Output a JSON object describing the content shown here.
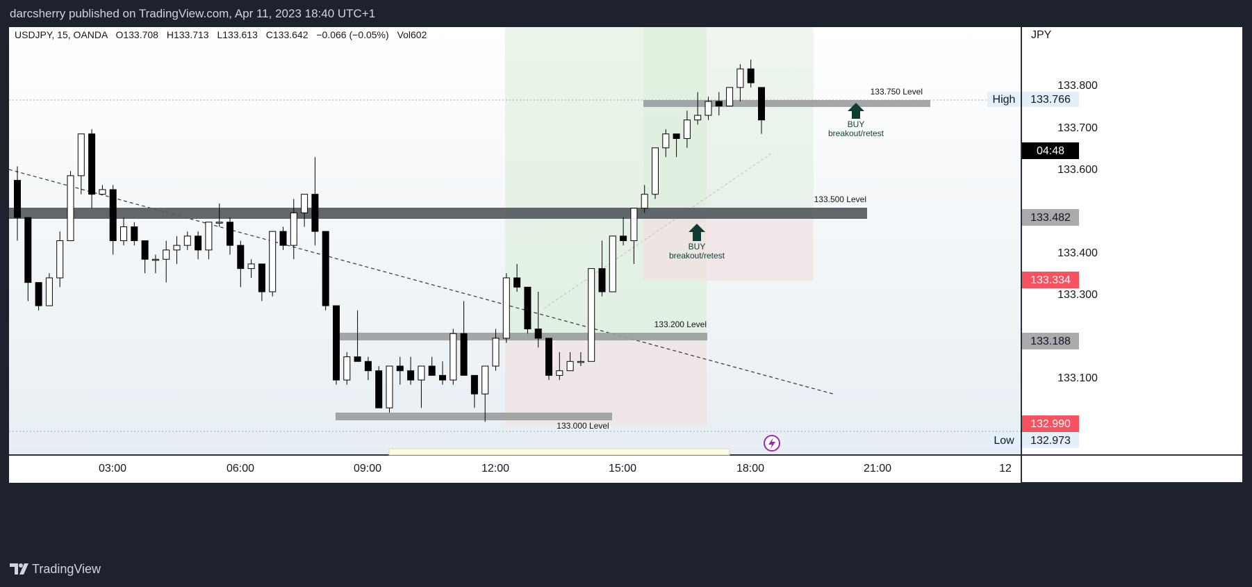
{
  "header": {
    "publisher": "darcsherry published on TradingView.com, Apr 11, 2023 18:40 UTC+1"
  },
  "legend": {
    "symbol": "USDJPY, 15, OANDA",
    "open": "O133.708",
    "high": "H133.713",
    "low": "L133.613",
    "close": "C133.642",
    "change": "−0.066 (−0.05%)",
    "volume": "Vol602"
  },
  "currency": "JPY",
  "price_axis": {
    "ticks": [
      "133.800",
      "133.700",
      "133.600",
      "133.400",
      "133.300",
      "133.100"
    ],
    "high_label": "High",
    "high_value": "133.766",
    "low_label": "Low",
    "low_value": "132.973",
    "countdown": "04:48",
    "level_133500_badge": "133.482",
    "red_badge_upper": "133.334",
    "level_133200_badge": "133.188",
    "red_badge_lower": "132.990"
  },
  "time_axis": {
    "ticks": [
      "03:00",
      "06:00",
      "09:00",
      "12:00",
      "15:00",
      "18:00",
      "21:00",
      "12"
    ]
  },
  "annotations": {
    "level_133750": "133.750 Level",
    "level_133500": "133.500 Level",
    "level_133200": "133.200 Level",
    "level_133000": "133.000 Level",
    "buy1_title": "BUY",
    "buy1_sub": "breakout/retest",
    "buy2_title": "BUY",
    "buy2_sub": "breakout/retest"
  },
  "colors": {
    "bull": "#ffffff",
    "bear": "#000000",
    "level_dark": "#555a60",
    "level_grey": "#9a9c9e",
    "profit": "#d9ecd6",
    "loss": "#f2dede",
    "arrow": "#0f3d33",
    "red_badge": "#f7525f",
    "lightning": "#9c27b0"
  },
  "footer": {
    "brand": "TradingView"
  },
  "chart_data": {
    "type": "candlestick",
    "symbol": "USDJPY",
    "interval": "15",
    "x_ticks": [
      "03:00",
      "06:00",
      "09:00",
      "12:00",
      "15:00",
      "18:00",
      "21:00",
      "12"
    ],
    "ylim": [
      132.92,
      133.84
    ],
    "y_ticks": [
      133.1,
      133.3,
      133.4,
      133.6,
      133.7,
      133.8
    ],
    "horizontal_levels": [
      133.75,
      133.5,
      133.2,
      133.0
    ],
    "candles": [
      [
        133.51,
        133.54,
        133.38,
        133.43
      ],
      [
        133.43,
        133.43,
        133.25,
        133.29
      ],
      [
        133.29,
        133.29,
        133.23,
        133.24
      ],
      [
        133.24,
        133.31,
        133.24,
        133.3
      ],
      [
        133.3,
        133.4,
        133.28,
        133.38
      ],
      [
        133.38,
        133.53,
        133.38,
        133.52
      ],
      [
        133.52,
        133.61,
        133.48,
        133.61
      ],
      [
        133.61,
        133.62,
        133.45,
        133.48
      ],
      [
        133.48,
        133.5,
        133.48,
        133.49
      ],
      [
        133.49,
        133.5,
        133.35,
        133.38
      ],
      [
        133.38,
        133.43,
        133.37,
        133.41
      ],
      [
        133.41,
        133.42,
        133.37,
        133.38
      ],
      [
        133.38,
        133.38,
        133.31,
        133.34
      ],
      [
        133.34,
        133.35,
        133.31,
        133.34
      ],
      [
        133.34,
        133.38,
        133.29,
        133.36
      ],
      [
        133.36,
        133.39,
        133.33,
        133.37
      ],
      [
        133.37,
        133.4,
        133.36,
        133.39
      ],
      [
        133.39,
        133.4,
        133.34,
        133.36
      ],
      [
        133.36,
        133.42,
        133.34,
        133.42
      ],
      [
        133.42,
        133.46,
        133.41,
        133.42
      ],
      [
        133.42,
        133.43,
        133.35,
        133.37
      ],
      [
        133.37,
        133.38,
        133.28,
        133.32
      ],
      [
        133.32,
        133.34,
        133.3,
        133.33
      ],
      [
        133.33,
        133.33,
        133.25,
        133.27
      ],
      [
        133.27,
        133.4,
        133.26,
        133.4
      ],
      [
        133.4,
        133.41,
        133.36,
        133.37
      ],
      [
        133.37,
        133.47,
        133.34,
        133.44
      ],
      [
        133.44,
        133.48,
        133.41,
        133.48
      ],
      [
        133.48,
        133.56,
        133.37,
        133.4
      ],
      [
        133.4,
        133.4,
        133.23,
        133.24
      ],
      [
        133.24,
        133.24,
        133.07,
        133.08
      ],
      [
        133.08,
        133.14,
        133.07,
        133.13
      ],
      [
        133.13,
        133.23,
        133.12,
        133.12
      ],
      [
        133.12,
        133.13,
        133.08,
        133.1
      ],
      [
        133.1,
        133.11,
        133.02,
        133.02
      ],
      [
        133.02,
        133.11,
        133.01,
        133.11
      ],
      [
        133.11,
        133.13,
        133.07,
        133.1
      ],
      [
        133.1,
        133.13,
        133.07,
        133.08
      ],
      [
        133.08,
        133.11,
        133.02,
        133.11
      ],
      [
        133.11,
        133.13,
        133.09,
        133.09
      ],
      [
        133.09,
        133.12,
        133.07,
        133.08
      ],
      [
        133.08,
        133.19,
        133.07,
        133.18
      ],
      [
        133.18,
        133.25,
        133.09,
        133.09
      ],
      [
        133.09,
        133.09,
        133.02,
        133.05
      ],
      [
        133.05,
        133.11,
        132.99,
        133.11
      ],
      [
        133.11,
        133.19,
        133.1,
        133.17
      ],
      [
        133.17,
        133.31,
        133.16,
        133.3
      ],
      [
        133.3,
        133.33,
        133.27,
        133.28
      ],
      [
        133.28,
        133.28,
        133.18,
        133.19
      ],
      [
        133.19,
        133.27,
        133.15,
        133.17
      ],
      [
        133.17,
        133.17,
        133.08,
        133.09
      ],
      [
        133.09,
        133.14,
        133.08,
        133.1
      ],
      [
        133.1,
        133.14,
        133.1,
        133.12
      ],
      [
        133.12,
        133.14,
        133.11,
        133.12
      ],
      [
        133.12,
        133.32,
        133.12,
        133.32
      ],
      [
        133.32,
        133.38,
        133.26,
        133.27
      ],
      [
        133.27,
        133.39,
        133.27,
        133.39
      ],
      [
        133.39,
        133.43,
        133.37,
        133.38
      ],
      [
        133.38,
        133.45,
        133.33,
        133.45
      ],
      [
        133.45,
        133.5,
        133.44,
        133.48
      ],
      [
        133.48,
        133.58,
        133.47,
        133.58
      ],
      [
        133.58,
        133.62,
        133.56,
        133.61
      ],
      [
        133.61,
        133.61,
        133.56,
        133.6
      ],
      [
        133.6,
        133.66,
        133.58,
        133.64
      ],
      [
        133.64,
        133.7,
        133.63,
        133.65
      ],
      [
        133.65,
        133.69,
        133.64,
        133.68
      ],
      [
        133.68,
        133.7,
        133.65,
        133.67
      ],
      [
        133.67,
        133.71,
        133.67,
        133.71
      ],
      [
        133.71,
        133.76,
        133.68,
        133.75
      ],
      [
        133.75,
        133.77,
        133.71,
        133.72
      ],
      [
        133.71,
        133.71,
        133.61,
        133.64
      ]
    ]
  }
}
